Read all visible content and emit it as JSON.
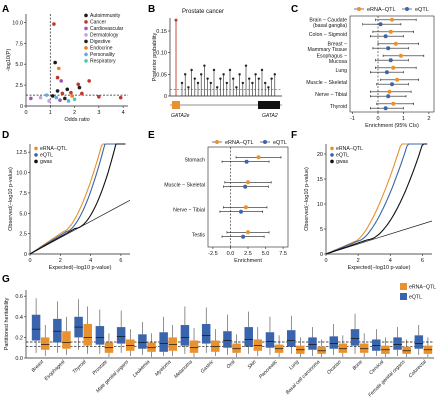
{
  "colors": {
    "eRNA": "#e8912d",
    "eQTL": "#3a65ac",
    "gwas": "#111111",
    "categories": {
      "Autoimmunity": "#1a1a1a",
      "Cancer": "#c0392b",
      "Cardiovascular": "#9b59b6",
      "Dermatology": "#c7a3d9",
      "Digestive": "#222222",
      "Endocrine": "#e67e22",
      "Personality": "#5dade2",
      "Respiratory": "#48c9b0"
    }
  },
  "chart_data": [
    {
      "panel": "A",
      "type": "scatter",
      "xlabel": "Odds ratio",
      "ylabel": "-log10(P)",
      "xticks": [
        "0",
        "1",
        "2",
        "3",
        "4"
      ],
      "yticks": [
        "0",
        "2.5",
        "5.0",
        "7.5",
        "10.0"
      ],
      "xlim": [
        0,
        4.2
      ],
      "ylim": [
        0,
        11
      ],
      "legend": [
        "Autoimmunity",
        "Cancer",
        "Cardiovascular",
        "Dermatology",
        "Digestive",
        "Endocrine",
        "Personality",
        "Respiratory"
      ],
      "points": [
        {
          "x": 1.15,
          "y": 9.8,
          "c": "Cancer"
        },
        {
          "x": 1.2,
          "y": 5.2,
          "c": "Autoimmunity"
        },
        {
          "x": 1.35,
          "y": 4.5,
          "c": "Endocrine"
        },
        {
          "x": 1.3,
          "y": 3.4,
          "c": "Cancer"
        },
        {
          "x": 1.45,
          "y": 3.0,
          "c": "Cardiovascular"
        },
        {
          "x": 2.6,
          "y": 3.0,
          "c": "Cancer"
        },
        {
          "x": 2.15,
          "y": 2.6,
          "c": "Cancer"
        },
        {
          "x": 2.2,
          "y": 2.2,
          "c": "Digestive"
        },
        {
          "x": 1.7,
          "y": 2.0,
          "c": "Autoimmunity"
        },
        {
          "x": 1.85,
          "y": 1.6,
          "c": "Cancer"
        },
        {
          "x": 1.3,
          "y": 1.8,
          "c": "Digestive"
        },
        {
          "x": 1.5,
          "y": 1.5,
          "c": "Cancer"
        },
        {
          "x": 2.3,
          "y": 1.5,
          "c": "Cancer"
        },
        {
          "x": 1.9,
          "y": 1.2,
          "c": "Endocrine"
        },
        {
          "x": 1.1,
          "y": 1.2,
          "c": "Autoimmunity"
        },
        {
          "x": 3.0,
          "y": 1.1,
          "c": "Cancer"
        },
        {
          "x": 0.6,
          "y": 1.0,
          "c": "Dermatology"
        },
        {
          "x": 0.85,
          "y": 1.3,
          "c": "Personality"
        },
        {
          "x": 1.25,
          "y": 1.0,
          "c": "Personality"
        },
        {
          "x": 1.6,
          "y": 0.9,
          "c": "Digestive"
        },
        {
          "x": 2.0,
          "y": 0.8,
          "c": "Respiratory"
        },
        {
          "x": 0.2,
          "y": 0.9,
          "c": "Cardiovascular"
        },
        {
          "x": 3.9,
          "y": 1.0,
          "c": "Cancer"
        },
        {
          "x": 1.4,
          "y": 0.7,
          "c": "Cardiovascular"
        },
        {
          "x": 0.95,
          "y": 0.6,
          "c": "Dermatology"
        },
        {
          "x": 1.75,
          "y": 0.6,
          "c": "Personality"
        }
      ],
      "hline": 1.3,
      "vline": 1
    },
    {
      "panel": "B",
      "type": "lollipop",
      "title": "Prostate cancer",
      "ylabel": "Posterior probability",
      "yticks": [
        "0",
        "0.05",
        "0.10",
        "0.15"
      ],
      "ylim": [
        0,
        0.18
      ],
      "highlight": 0.175,
      "genes": [
        "GATA2e",
        "GATA2"
      ],
      "stems": [
        0.03,
        0.05,
        0.02,
        0.06,
        0.04,
        0.03,
        0.05,
        0.07,
        0.04,
        0.03,
        0.06,
        0.02,
        0.04,
        0.05,
        0.03,
        0.06,
        0.04,
        0.02,
        0.05,
        0.03,
        0.07,
        0.04,
        0.03,
        0.05,
        0.04,
        0.06,
        0.03,
        0.02,
        0.04,
        0.05
      ]
    },
    {
      "panel": "C",
      "type": "forest",
      "xlabel": "Enrichment (95% CIs)",
      "xticks": [
        "-1",
        "0",
        "1",
        "2"
      ],
      "xlim": [
        -1.1,
        2.2
      ],
      "series": [
        "eRNA−QTL",
        "eQTL"
      ],
      "categories": [
        "Brain − Caudate\n(basal ganglia)",
        "Colon − Sigmoid",
        "Breast −\nMammary Tissue",
        "Esophagus −\nMucosa",
        "Lung",
        "Muscle − Skeletal",
        "Nerve − Tibial",
        "Thyroid"
      ],
      "eRNA": [
        [
          0.55,
          -0.1,
          1.5
        ],
        [
          0.5,
          -0.2,
          1.4
        ],
        [
          0.7,
          0.0,
          1.6
        ],
        [
          0.9,
          0.2,
          1.8
        ],
        [
          0.6,
          -0.1,
          1.5
        ],
        [
          0.75,
          0.1,
          1.6
        ],
        [
          0.45,
          -0.3,
          1.3
        ],
        [
          0.6,
          -0.05,
          1.4
        ]
      ],
      "eQTL": [
        [
          0.1,
          -0.6,
          0.9
        ],
        [
          0.3,
          -0.3,
          1.0
        ],
        [
          0.4,
          -0.2,
          1.2
        ],
        [
          0.5,
          -0.1,
          1.2
        ],
        [
          0.35,
          -0.3,
          1.0
        ],
        [
          0.55,
          -0.05,
          1.2
        ],
        [
          0.4,
          -0.3,
          1.1
        ],
        [
          0.3,
          -0.3,
          1.0
        ]
      ]
    },
    {
      "panel": "D",
      "type": "qq",
      "xlabel": "Expected(−log10 p-value)",
      "ylabel": "Observed(−log10 p-value)",
      "xticks": [
        "0",
        "2",
        "4",
        "6"
      ],
      "yticks": [
        "0",
        "2.5",
        "5.0",
        "7.5",
        "10.0",
        "12.5"
      ],
      "xlim": [
        0,
        6.6
      ],
      "ylim": [
        0,
        13.5
      ],
      "legend": [
        "eRNA−QTL",
        "eQTL",
        "gwas"
      ]
    },
    {
      "panel": "E",
      "type": "forest",
      "xlabel": "Enrichment",
      "xticks": [
        "-2.5",
        "0.0",
        "2.5",
        "5.0",
        "7.5"
      ],
      "xlim": [
        -3.2,
        8.2
      ],
      "series": [
        "eRNA−QTL",
        "eQTL"
      ],
      "categories": [
        "Stomach",
        "Muscle − Skeletal",
        "Nerve − Tibial",
        "Testis"
      ],
      "eRNA": [
        [
          4.0,
          0.8,
          7.2
        ],
        [
          2.5,
          -0.8,
          5.8
        ],
        [
          2.2,
          -1.0,
          5.2
        ],
        [
          2.5,
          -0.5,
          5.5
        ]
      ],
      "eQTL": [
        [
          2.3,
          -1.2,
          5.5
        ],
        [
          2.1,
          -1.0,
          5.4
        ],
        [
          1.5,
          -1.5,
          4.6
        ],
        [
          1.8,
          -1.2,
          4.8
        ]
      ]
    },
    {
      "panel": "F",
      "type": "qq",
      "xlabel": "Expected(−log10 p-value)",
      "ylabel": "Observed(−log10 p-value)",
      "xticks": [
        "0",
        "2",
        "4",
        "6"
      ],
      "yticks": [
        "0",
        "5",
        "10",
        "15",
        "20"
      ],
      "xlim": [
        0,
        6.6
      ],
      "ylim": [
        0,
        22
      ],
      "legend": [
        "eRNA−QTL",
        "eQTL",
        "gwas"
      ]
    },
    {
      "panel": "G",
      "type": "boxplot",
      "ylabel": "Partitioned heritability",
      "yticks": [
        "0.0",
        "0.2",
        "0.4",
        "0.6"
      ],
      "ylim": [
        0,
        0.66
      ],
      "legend": [
        "eRNA−QTL",
        "eQTL"
      ],
      "hlines": [
        0.155,
        0.11
      ],
      "categories": [
        "Breast",
        "Esophageal",
        "Thyroid",
        "Prostate",
        "Male genital organs",
        "Leukemia",
        "Myeloma",
        "Melanoma",
        "Gastric",
        "Oral",
        "Skin",
        "Pancreatic",
        "Lung",
        "Basal cell carcinoma",
        "Ovarian",
        "Bone",
        "Cervical",
        "Female genital organs",
        "Colorectal"
      ],
      "eQTL": [
        [
          0.05,
          0.17,
          0.28,
          0.42,
          0.58
        ],
        [
          0.05,
          0.15,
          0.26,
          0.38,
          0.55
        ],
        [
          0.08,
          0.2,
          0.3,
          0.4,
          0.57
        ],
        [
          0.04,
          0.13,
          0.2,
          0.31,
          0.47
        ],
        [
          0.05,
          0.14,
          0.21,
          0.3,
          0.46
        ],
        [
          0.03,
          0.09,
          0.15,
          0.23,
          0.35
        ],
        [
          0.02,
          0.06,
          0.14,
          0.25,
          0.4
        ],
        [
          0.04,
          0.12,
          0.2,
          0.32,
          0.5
        ],
        [
          0.05,
          0.14,
          0.22,
          0.33,
          0.49
        ],
        [
          0.03,
          0.1,
          0.17,
          0.26,
          0.42
        ],
        [
          0.04,
          0.11,
          0.18,
          0.3,
          0.45
        ],
        [
          0.03,
          0.1,
          0.16,
          0.25,
          0.4
        ],
        [
          0.04,
          0.11,
          0.17,
          0.27,
          0.41
        ],
        [
          0.02,
          0.08,
          0.13,
          0.2,
          0.3
        ],
        [
          0.03,
          0.09,
          0.14,
          0.21,
          0.33
        ],
        [
          0.04,
          0.12,
          0.19,
          0.28,
          0.43
        ],
        [
          0.02,
          0.07,
          0.12,
          0.18,
          0.28
        ],
        [
          0.02,
          0.08,
          0.13,
          0.2,
          0.3
        ],
        [
          0.03,
          0.09,
          0.14,
          0.22,
          0.32
        ]
      ],
      "eRNA": [
        [
          0.02,
          0.08,
          0.13,
          0.2,
          0.32
        ],
        [
          0.03,
          0.09,
          0.15,
          0.26,
          0.4
        ],
        [
          0.04,
          0.12,
          0.2,
          0.33,
          0.5
        ],
        [
          0.01,
          0.05,
          0.1,
          0.15,
          0.24
        ],
        [
          0.02,
          0.07,
          0.12,
          0.18,
          0.28
        ],
        [
          0.01,
          0.06,
          0.1,
          0.15,
          0.24
        ],
        [
          0.02,
          0.07,
          0.13,
          0.2,
          0.32
        ],
        [
          0.01,
          0.05,
          0.1,
          0.17,
          0.29
        ],
        [
          0.02,
          0.06,
          0.11,
          0.17,
          0.28
        ],
        [
          0.01,
          0.05,
          0.09,
          0.14,
          0.23
        ],
        [
          0.02,
          0.07,
          0.12,
          0.18,
          0.3
        ],
        [
          0.01,
          0.05,
          0.09,
          0.13,
          0.22
        ],
        [
          0.01,
          0.04,
          0.08,
          0.12,
          0.2
        ],
        [
          0.01,
          0.04,
          0.07,
          0.11,
          0.18
        ],
        [
          0.01,
          0.05,
          0.09,
          0.14,
          0.22
        ],
        [
          0.01,
          0.05,
          0.09,
          0.14,
          0.24
        ],
        [
          0.01,
          0.04,
          0.08,
          0.12,
          0.2
        ],
        [
          0.01,
          0.04,
          0.07,
          0.11,
          0.18
        ],
        [
          0.01,
          0.04,
          0.08,
          0.12,
          0.2
        ]
      ]
    }
  ]
}
